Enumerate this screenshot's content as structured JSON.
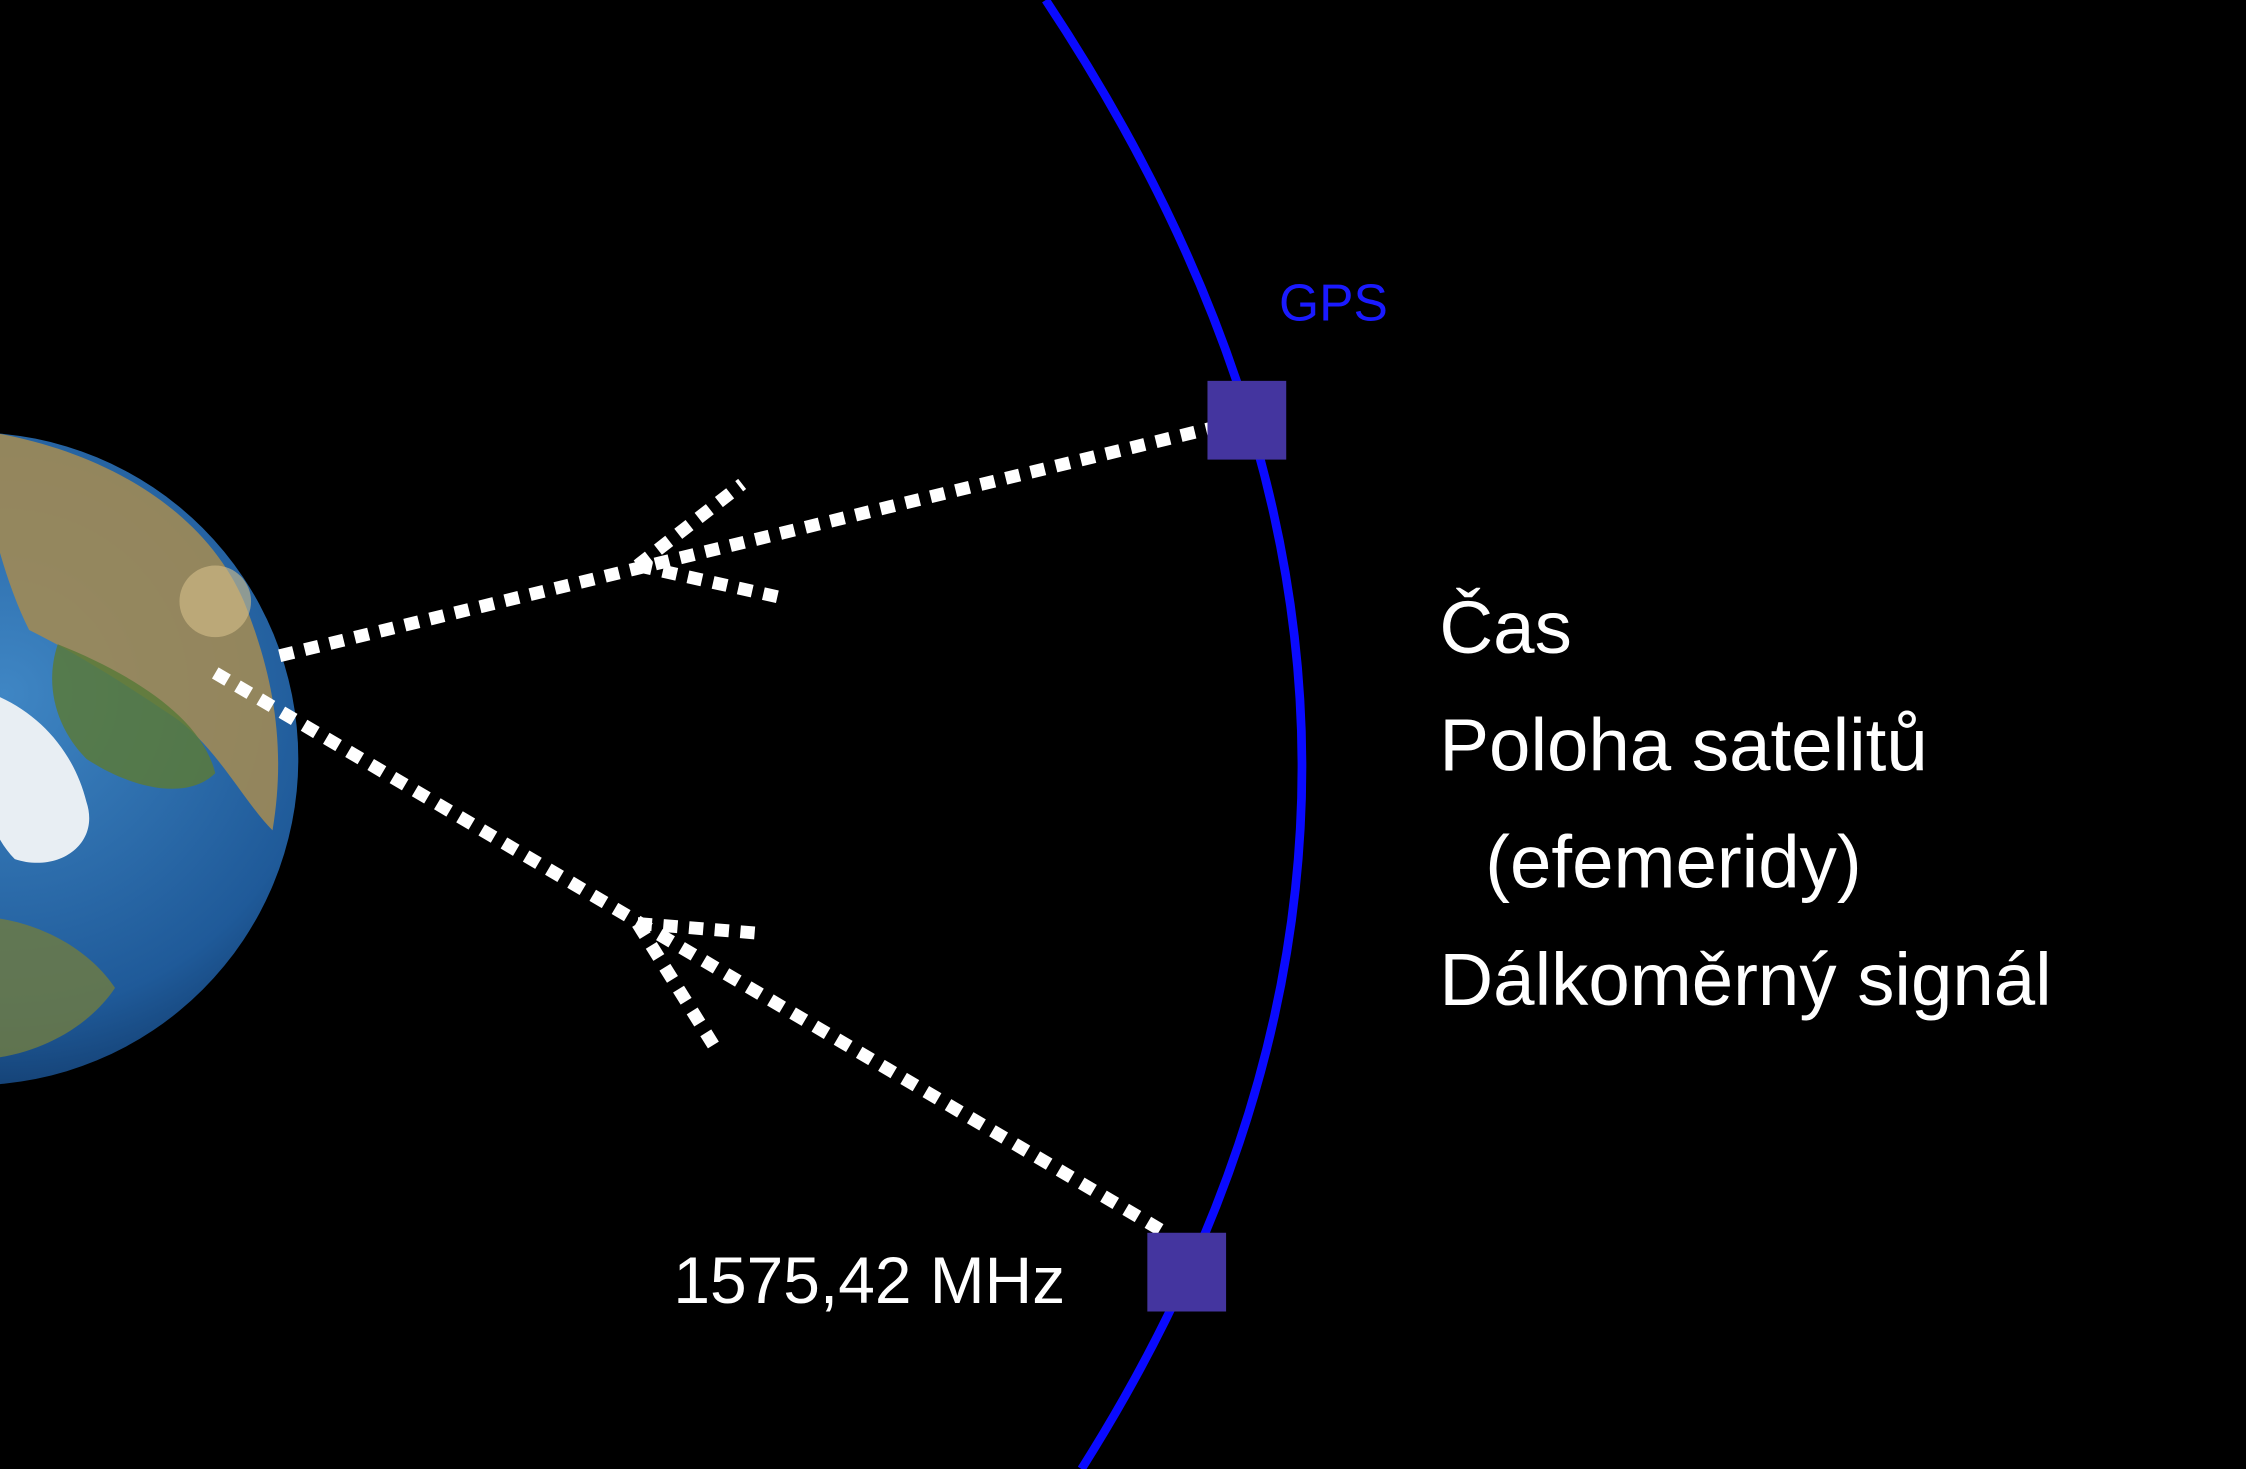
{
  "labels": {
    "constellation": "GPS",
    "frequency": "1575,42 MHz"
  },
  "message": {
    "items": [
      "Čas",
      "Poloha satelitů",
      "(efemeridy)",
      "Dálkoměrný signál"
    ]
  }
}
